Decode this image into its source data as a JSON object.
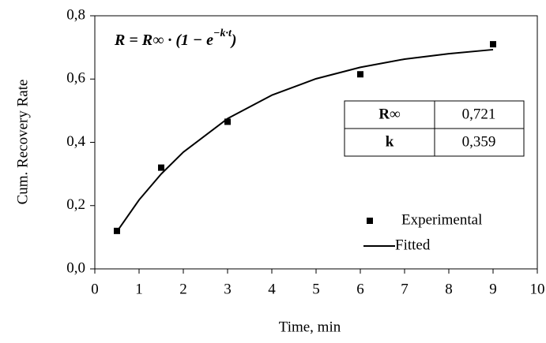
{
  "chart_data": {
    "type": "scatter",
    "x_label": "Time, min",
    "y_label": "Cum. Recovery Rate",
    "equation": {
      "base": "R = R∞ · (1 − e",
      "exponent": "−k·t",
      "close": ")"
    },
    "table": {
      "rows": [
        [
          "R∞",
          "0,721"
        ],
        [
          "k",
          "0,359"
        ]
      ]
    },
    "xlim": [
      0,
      10
    ],
    "xticks": [
      0,
      1,
      2,
      3,
      4,
      5,
      6,
      7,
      8,
      9,
      10
    ],
    "ylim": [
      0,
      0.8
    ],
    "yticks": [
      {
        "value": 0,
        "label": "0,0"
      },
      {
        "value": 0.2,
        "label": "0,2"
      },
      {
        "value": 0.4,
        "label": "0,4"
      },
      {
        "value": 0.6,
        "label": "0,6"
      },
      {
        "value": 0.8,
        "label": "0,8"
      }
    ],
    "legend": "lower right",
    "series": [
      {
        "name": "Experimental",
        "type": "scatter",
        "color": "#000000",
        "x": [
          0.5,
          1.5,
          3,
          6,
          9
        ],
        "values": [
          0.12,
          0.32,
          0.465,
          0.615,
          0.71
        ]
      },
      {
        "name": "Fitted",
        "type": "line",
        "color": "#000000",
        "x": [
          0.5,
          1,
          1.5,
          2,
          3,
          4,
          5,
          6,
          7,
          8,
          9
        ],
        "values": [
          0.118,
          0.218,
          0.3,
          0.369,
          0.475,
          0.549,
          0.601,
          0.637,
          0.663,
          0.68,
          0.693
        ]
      }
    ]
  }
}
